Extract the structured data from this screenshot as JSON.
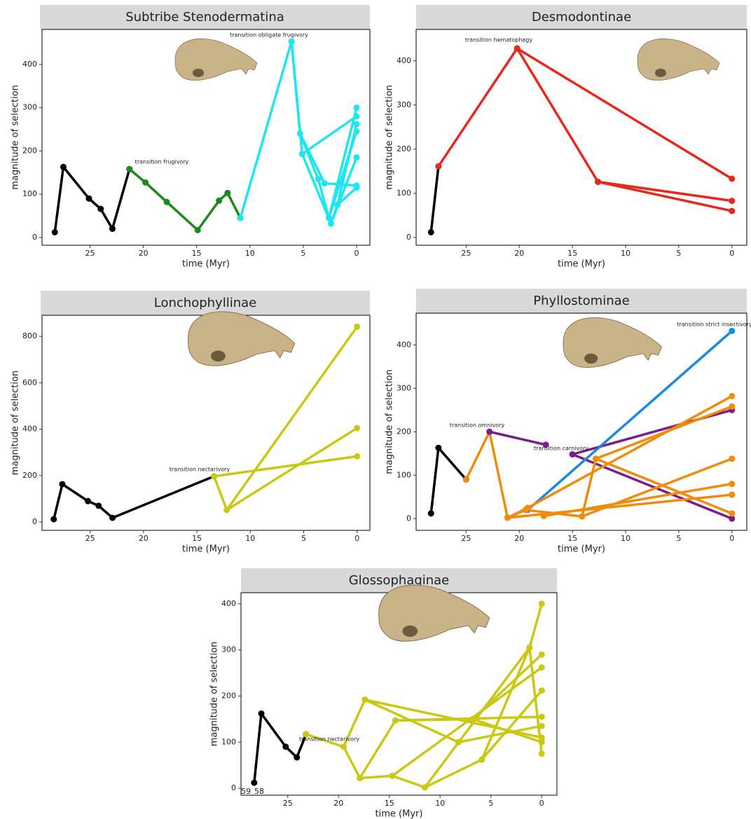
{
  "chart_data": [
    {
      "type": "line",
      "title": "Subtribe Stenodermatina",
      "xlabel": "time (Myr)",
      "ylabel": "magnitude of selection",
      "xlim": [
        29.5,
        -1.25
      ],
      "ylim": [
        -18,
        481
      ],
      "xticks": [
        25,
        20,
        15,
        10,
        5,
        0
      ],
      "yticks": [
        0,
        100,
        200,
        300,
        400
      ],
      "annotations": [
        "transition obligate frugivory",
        "transition frugivory"
      ],
      "series": [
        {
          "color": "#000000",
          "x": [
            28.3,
            27.5,
            25.1,
            24,
            22.9,
            21.3
          ],
          "values": [
            12,
            163,
            90,
            66,
            20,
            158
          ]
        },
        {
          "color": "#1a8a1a",
          "x": [
            21.3,
            19.8,
            17.8,
            14.9,
            12.9,
            12.1,
            10.9
          ],
          "values": [
            158,
            127,
            82,
            17,
            85,
            103,
            45
          ]
        },
        {
          "color": "#1ee6f0",
          "x": [
            10.9,
            6.1,
            5.3,
            3.6,
            2.6,
            0
          ],
          "values": [
            45,
            453,
            240,
            135,
            45,
            300
          ]
        },
        {
          "color": "#1ee6f0",
          "x": [
            6.1,
            5.1,
            2.4,
            1.8,
            0
          ],
          "values": [
            453,
            193,
            32,
            75,
            262
          ]
        },
        {
          "color": "#1ee6f0",
          "x": [
            5.3,
            3.0,
            0
          ],
          "values": [
            240,
            125,
            120
          ]
        },
        {
          "color": "#1ee6f0",
          "x": [
            5.1,
            0
          ],
          "values": [
            193,
            280
          ]
        },
        {
          "color": "#1ee6f0",
          "x": [
            2.6,
            0
          ],
          "values": [
            45,
            245
          ]
        },
        {
          "color": "#1ee6f0",
          "x": [
            2.4,
            0
          ],
          "values": [
            32,
            185
          ]
        },
        {
          "color": "#1ee6f0",
          "x": [
            1.8,
            0
          ],
          "values": [
            75,
            115
          ]
        }
      ]
    },
    {
      "type": "line",
      "title": "Desmodontinae",
      "xlabel": "time (Myr)",
      "ylabel": "magnitude of selection",
      "xlim": [
        29.7,
        -1.4
      ],
      "ylim": [
        -17.5,
        471
      ],
      "xticks": [
        25,
        20,
        15,
        10,
        5,
        0
      ],
      "yticks": [
        0,
        100,
        200,
        300,
        400
      ],
      "annotations": [
        "transition hematophagy"
      ],
      "series": [
        {
          "color": "#000000",
          "x": [
            28.3,
            27.6
          ],
          "values": [
            12,
            161
          ]
        },
        {
          "color": "#e8281a",
          "x": [
            27.6,
            20.2,
            0
          ],
          "values": [
            161,
            428,
            133
          ]
        },
        {
          "color": "#e8281a",
          "x": [
            20.2,
            12.6,
            0
          ],
          "values": [
            428,
            126,
            83
          ]
        },
        {
          "color": "#e8281a",
          "x": [
            12.6,
            0
          ],
          "values": [
            126,
            60
          ]
        }
      ]
    },
    {
      "type": "line",
      "title": "Lonchophyllinae",
      "xlabel": "time (Myr)",
      "ylabel": "magnitude of selection",
      "xlim": [
        29.5,
        -1.2
      ],
      "ylim": [
        -36,
        891
      ],
      "xticks": [
        25,
        20,
        15,
        10,
        5,
        0
      ],
      "yticks": [
        0,
        200,
        400,
        600,
        800
      ],
      "annotations": [
        "transition nectarivory"
      ],
      "series": [
        {
          "color": "#000000",
          "x": [
            28.4,
            27.6,
            25.2,
            24.2,
            22.9,
            13.4
          ],
          "values": [
            12,
            163,
            90,
            70,
            18,
            197
          ]
        },
        {
          "color": "#c9c914",
          "x": [
            13.4,
            12.2,
            0
          ],
          "values": [
            197,
            52,
            842
          ]
        },
        {
          "color": "#c9c914",
          "x": [
            12.2,
            0
          ],
          "values": [
            52,
            405
          ]
        },
        {
          "color": "#c9c914",
          "x": [
            13.4,
            0
          ],
          "values": [
            197,
            283
          ]
        }
      ]
    },
    {
      "type": "line",
      "title": "Phyllostominae",
      "xlabel": "time (Myr)",
      "ylabel": "magnitude of selection",
      "xlim": [
        29.7,
        -1.4
      ],
      "ylim": [
        -27,
        473
      ],
      "xticks": [
        25,
        20,
        15,
        10,
        5,
        0
      ],
      "yticks": [
        0,
        100,
        200,
        300,
        400
      ],
      "annotations": [
        "transition strict insectivory",
        "transition omnivory",
        "transition carnivory"
      ],
      "series": [
        {
          "color": "#000000",
          "x": [
            28.3,
            27.6,
            25
          ],
          "values": [
            12,
            163,
            90
          ]
        },
        {
          "color": "#f08c0a",
          "x": [
            25,
            22.8,
            21.1,
            19.4
          ],
          "values": [
            90,
            200,
            2,
            20
          ]
        },
        {
          "color": "#7b1c8c",
          "x": [
            22.8,
            17.5
          ],
          "values": [
            200,
            170
          ]
        },
        {
          "color": "#7b1c8c",
          "x": [
            15,
            0
          ],
          "values": [
            148,
            250
          ]
        },
        {
          "color": "#7b1c8c",
          "x": [
            15,
            0
          ],
          "values": [
            148,
            0
          ]
        },
        {
          "color": "#1a8ae0",
          "x": [
            19.2,
            0
          ],
          "values": [
            20,
            432
          ]
        },
        {
          "color": "#f08c0a",
          "x": [
            21.1,
            19.2,
            0
          ],
          "values": [
            2,
            25,
            282
          ]
        },
        {
          "color": "#f08c0a",
          "x": [
            19.4,
            14.1,
            12.8,
            0
          ],
          "values": [
            20,
            5,
            138,
            12
          ]
        },
        {
          "color": "#f08c0a",
          "x": [
            17.7,
            0
          ],
          "values": [
            6,
            80
          ]
        },
        {
          "color": "#f08c0a",
          "x": [
            21.1,
            0
          ],
          "values": [
            2,
            55
          ]
        },
        {
          "color": "#f08c0a",
          "x": [
            12.8,
            0
          ],
          "values": [
            138,
            258
          ]
        },
        {
          "color": "#f08c0a",
          "x": [
            14.1,
            0
          ],
          "values": [
            5,
            138
          ]
        }
      ]
    },
    {
      "type": "line",
      "title": "Glossophaginae",
      "xlabel": "time (Myr)",
      "ylabel": "magnitude of selection",
      "xlim": [
        29.6,
        -1.5
      ],
      "ylim": [
        -15,
        424
      ],
      "xticks": [
        25,
        20,
        15,
        10,
        5,
        0
      ],
      "yticks": [
        0,
        100,
        200,
        300,
        400
      ],
      "annotations": [
        "transition nectarivory"
      ],
      "point_labels": [
        "59",
        "58"
      ],
      "series": [
        {
          "color": "#000000",
          "x": [
            28.3,
            27.6,
            25.2,
            24.1,
            23.2
          ],
          "values": [
            12,
            162,
            90,
            67,
            117
          ]
        },
        {
          "color": "#c9c914",
          "x": [
            23.2,
            19.5,
            17.9,
            14.4,
            0
          ],
          "values": [
            117,
            90,
            22,
            147,
            155
          ]
        },
        {
          "color": "#c9c914",
          "x": [
            19.5,
            17.4,
            8.2,
            0
          ],
          "values": [
            90,
            192,
            100,
            135
          ]
        },
        {
          "color": "#c9c914",
          "x": [
            17.4,
            0
          ],
          "values": [
            192,
            110
          ]
        },
        {
          "color": "#c9c914",
          "x": [
            17.9,
            14.7,
            11.5,
            5.9,
            0
          ],
          "values": [
            22,
            27,
            2,
            62,
            212
          ]
        },
        {
          "color": "#c9c914",
          "x": [
            14.4,
            6.8,
            0
          ],
          "values": [
            147,
            150,
            100
          ]
        },
        {
          "color": "#c9c914",
          "x": [
            5.9,
            1.2,
            0
          ],
          "values": [
            62,
            305,
            400
          ]
        },
        {
          "color": "#c9c914",
          "x": [
            11.5,
            1.2,
            0
          ],
          "values": [
            2,
            305,
            75
          ]
        },
        {
          "color": "#c9c914",
          "x": [
            6.8,
            0
          ],
          "values": [
            150,
            290
          ]
        },
        {
          "color": "#c9c914",
          "x": [
            14.7,
            0
          ],
          "values": [
            27,
            262
          ]
        }
      ]
    }
  ]
}
